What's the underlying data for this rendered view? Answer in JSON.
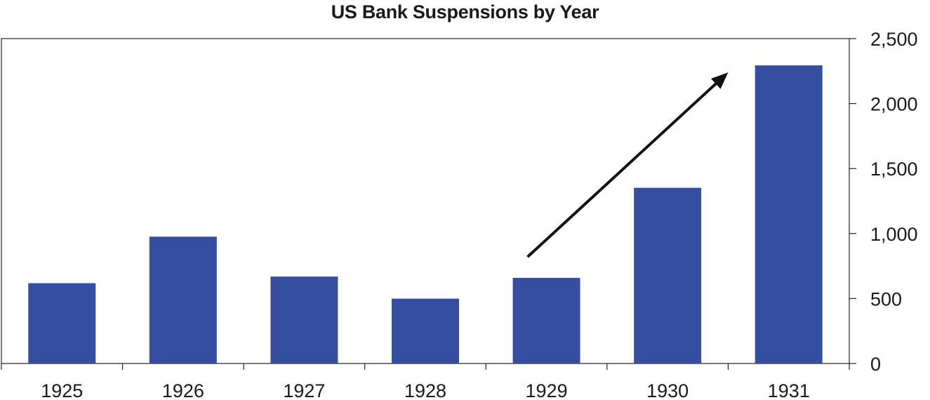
{
  "chart_data": {
    "type": "bar",
    "title": "US Bank Suspensions by Year",
    "categories": [
      "1925",
      "1926",
      "1927",
      "1928",
      "1929",
      "1930",
      "1931"
    ],
    "values": [
      618,
      976,
      669,
      499,
      659,
      1352,
      2294
    ],
    "ylim": [
      0,
      2500
    ],
    "yticks": [
      0,
      500,
      1000,
      1500,
      2000,
      2500
    ],
    "ytick_labels": [
      "0",
      "500",
      "1,000",
      "1,500",
      "2,000",
      "2,500"
    ],
    "y_axis_side": "right",
    "grid": false,
    "bar_color": "#364ea0",
    "annotation": {
      "type": "arrow",
      "from": {
        "x": "1929",
        "y": 820
      },
      "to": {
        "x": "1930/1931",
        "y": 2240
      },
      "color": "#111111"
    }
  }
}
